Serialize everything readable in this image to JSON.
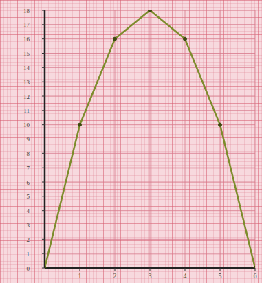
{
  "chart_data": {
    "type": "line",
    "x": [
      0,
      1,
      2,
      3,
      4,
      5,
      6
    ],
    "values": [
      0,
      10,
      16,
      18,
      16,
      10,
      0
    ],
    "color": "#7d8c2c",
    "marker": "circle",
    "xlim": [
      0,
      6
    ],
    "ylim": [
      0,
      18
    ],
    "xticks": [
      1,
      2,
      3,
      4,
      5,
      6
    ],
    "yticks": [
      0,
      1,
      2,
      3,
      4,
      5,
      6,
      7,
      8,
      9,
      10,
      11,
      12,
      13,
      14,
      15,
      16,
      17,
      18
    ],
    "grid": true
  }
}
